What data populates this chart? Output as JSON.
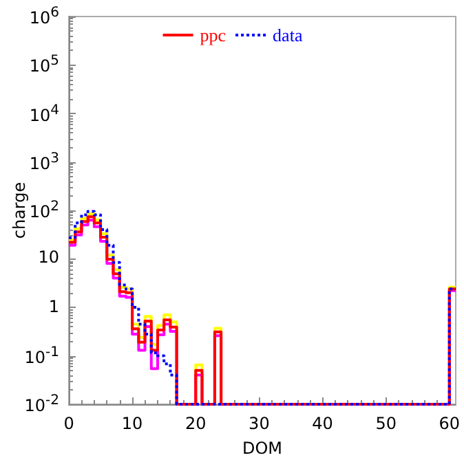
{
  "chart_data": {
    "type": "histogram",
    "xlabel": "DOM",
    "ylabel": "charge",
    "log": "y",
    "grid": false,
    "legend": "top",
    "line_style": "solid",
    "bins": [
      0,
      1,
      2,
      3,
      4,
      5,
      6,
      7,
      8,
      9,
      10,
      11,
      12,
      13,
      14,
      15,
      16,
      17,
      18,
      19,
      20,
      21,
      22,
      23,
      24,
      25,
      26,
      27,
      28,
      29,
      30,
      31,
      32,
      33,
      34,
      35,
      36,
      37,
      38,
      39,
      40,
      41,
      42,
      43,
      44,
      45,
      46,
      47,
      48,
      49,
      50,
      51,
      52,
      53,
      54,
      55,
      56,
      57,
      58,
      59,
      60,
      61
    ],
    "xlim": [
      0,
      61
    ],
    "xticks": [
      0,
      10,
      20,
      30,
      40,
      50,
      60
    ],
    "ylim": [
      0.01,
      1000000
    ],
    "yticks": [
      {
        "value": 0.01,
        "label": "10$^{-2}$"
      },
      {
        "value": 0.1,
        "label": "10$^{-1}$"
      },
      1,
      10,
      {
        "value": 100,
        "label": "10$^{2}$"
      },
      {
        "value": 1000,
        "label": "10$^{3}$"
      },
      {
        "value": 10000,
        "label": "10$^{4}$"
      },
      {
        "value": 100000,
        "label": "10$^{5}$"
      },
      {
        "value": 1000000,
        "label": "10$^{6}$"
      }
    ],
    "series": [
      {
        "color": "#ffff00",
        "values": [
          25,
          42,
          68,
          85,
          64,
          33,
          12,
          6,
          2.6,
          2.4,
          0.45,
          0.24,
          0.65,
          0.17,
          0.42,
          0.7,
          0.5,
          null,
          null,
          null,
          0.065,
          null,
          null,
          0.37,
          null,
          null,
          null,
          null,
          null,
          null,
          null,
          null,
          null,
          null,
          null,
          null,
          null,
          null,
          null,
          null,
          null,
          null,
          null,
          null,
          null,
          null,
          null,
          null,
          null,
          null,
          null,
          null,
          null,
          null,
          null,
          null,
          null,
          null,
          null,
          null,
          2.6
        ]
      },
      {
        "color": "#ff00ff",
        "values": [
          19,
          31,
          50,
          63,
          46,
          23,
          8,
          4,
          1.7,
          1.6,
          0.28,
          0.13,
          0.4,
          0.054,
          0.27,
          0.45,
          0.32,
          null,
          null,
          null,
          0.04,
          null,
          null,
          0.26,
          null,
          null,
          null,
          null,
          null,
          null,
          null,
          null,
          null,
          null,
          null,
          null,
          null,
          null,
          null,
          null,
          null,
          null,
          null,
          null,
          null,
          null,
          null,
          null,
          null,
          null,
          null,
          null,
          null,
          null,
          null,
          null,
          null,
          null,
          null,
          null,
          2.2
        ]
      },
      {
        "name": "ppc",
        "color": "#ff0000",
        "values": [
          22,
          36,
          59,
          74,
          55,
          28,
          9.8,
          4.9,
          2.1,
          2.0,
          0.36,
          0.19,
          0.52,
          0.13,
          0.34,
          0.55,
          0.39,
          null,
          null,
          null,
          0.05,
          null,
          null,
          0.31,
          null,
          null,
          null,
          null,
          null,
          null,
          null,
          null,
          null,
          null,
          null,
          null,
          null,
          null,
          null,
          null,
          null,
          null,
          null,
          null,
          null,
          null,
          null,
          null,
          null,
          null,
          null,
          null,
          null,
          null,
          null,
          null,
          null,
          null,
          null,
          null,
          2.4
        ]
      },
      {
        "name": "data",
        "color": "#0000ff",
        "line_style": "dotted",
        "values": [
          27,
          55,
          81,
          95,
          81,
          40,
          19,
          8.4,
          2.9,
          2.4,
          1.0,
          0.45,
          0.28,
          0.115,
          0.1,
          0.068,
          0.04,
          null,
          null,
          null,
          null,
          null,
          null,
          null,
          null,
          null,
          null,
          null,
          null,
          null,
          null,
          null,
          null,
          null,
          null,
          null,
          null,
          null,
          null,
          null,
          null,
          null,
          null,
          null,
          null,
          null,
          null,
          null,
          null,
          null,
          null,
          null,
          null,
          null,
          null,
          null,
          null,
          null,
          null,
          null,
          2.4
        ]
      }
    ]
  }
}
